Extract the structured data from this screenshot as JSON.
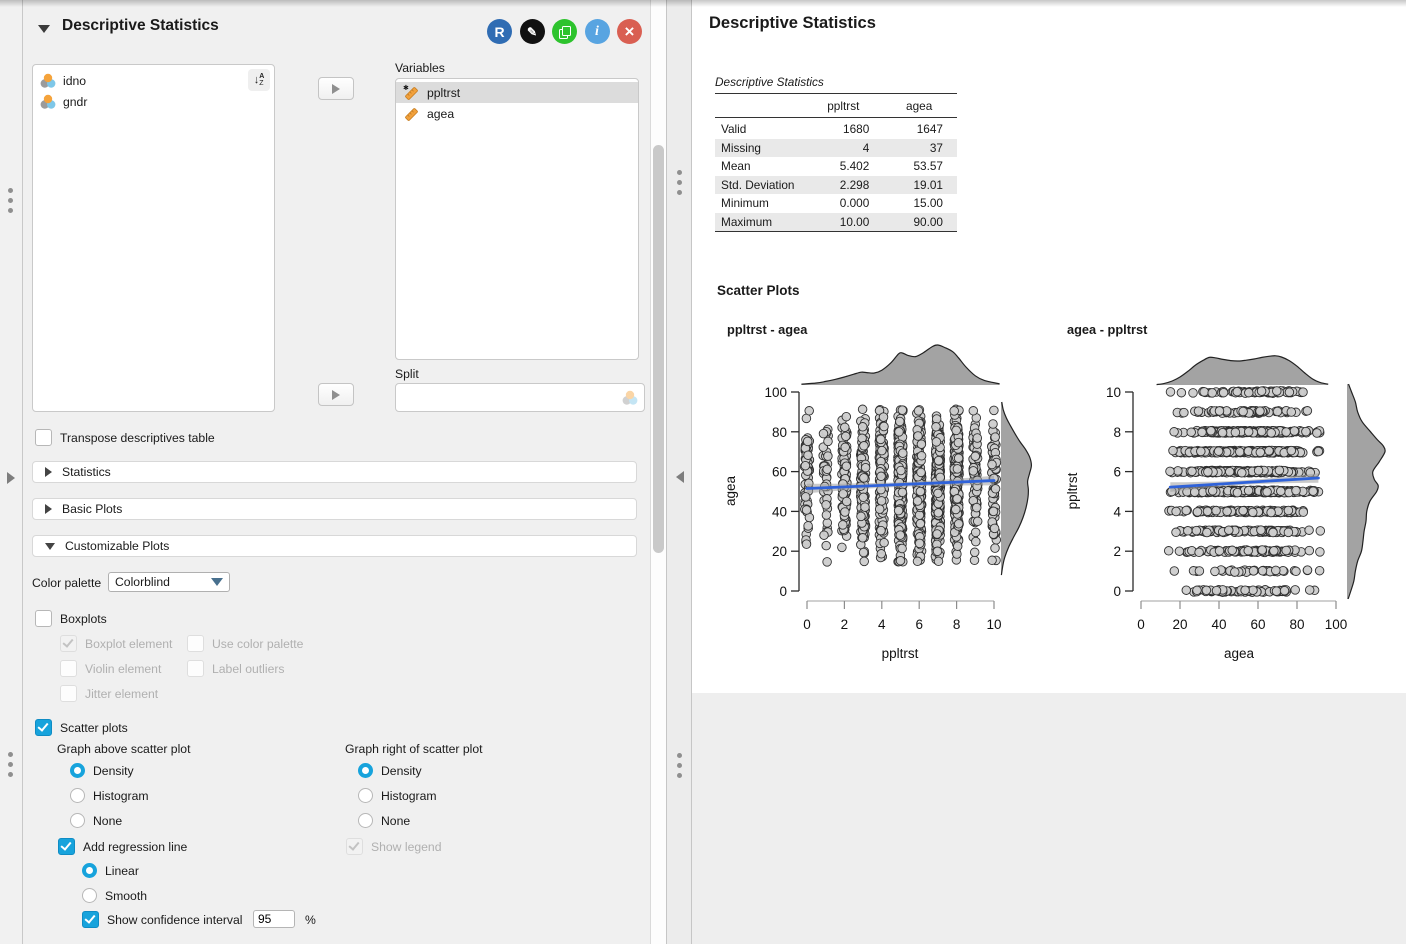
{
  "panel": {
    "title": "Descriptive Statistics",
    "header_icons": {
      "r_syntax": {
        "glyph": "R",
        "color": "#2f6cb3"
      },
      "edit": {
        "glyph": "✎",
        "color": "#111111"
      },
      "duplicate": {
        "color": "#2dc32d"
      },
      "info": {
        "glyph": "i",
        "color": "#58a4e1"
      },
      "close": {
        "glyph": "×",
        "color": "#d95f52"
      }
    },
    "sort_icon": {
      "arrow": "↓",
      "top": "A",
      "bottom": "Z"
    },
    "available_list": {
      "items": [
        {
          "label": "idno",
          "type": "nominal"
        },
        {
          "label": "gndr",
          "type": "nominal"
        }
      ]
    },
    "variables_list": {
      "label": "Variables",
      "items": [
        {
          "label": "ppltrst",
          "type": "scale",
          "selected": true,
          "flagged": true
        },
        {
          "label": "agea",
          "type": "scale",
          "selected": false,
          "flagged": false
        }
      ]
    },
    "split": {
      "label": "Split",
      "value": ""
    },
    "transpose": {
      "label": "Transpose descriptives table",
      "checked": false
    },
    "sections": [
      {
        "label": "Statistics",
        "expanded": false
      },
      {
        "label": "Basic Plots",
        "expanded": false
      },
      {
        "label": "Customizable Plots",
        "expanded": true
      }
    ],
    "color_palette": {
      "label": "Color palette",
      "value": "Colorblind"
    },
    "boxplots": {
      "label": "Boxplots",
      "checked": false,
      "boxplot_element": {
        "label": "Boxplot element",
        "checked": true
      },
      "use_color_palette": {
        "label": "Use color palette",
        "checked": false
      },
      "violin_element": {
        "label": "Violin element",
        "checked": false
      },
      "label_outliers": {
        "label": "Label outliers",
        "checked": false
      },
      "jitter_element": {
        "label": "Jitter element",
        "checked": false
      }
    },
    "scatter": {
      "label": "Scatter plots",
      "checked": true,
      "above_label": "Graph above scatter plot",
      "right_label": "Graph right of scatter plot",
      "above_options": [
        "Density",
        "Histogram",
        "None"
      ],
      "above_selected": "Density",
      "right_options": [
        "Density",
        "Histogram",
        "None"
      ],
      "right_selected": "Density",
      "regression": {
        "label": "Add regression line",
        "checked": true,
        "options": [
          "Linear",
          "Smooth"
        ],
        "selected": "Linear"
      },
      "ci": {
        "label": "Show confidence interval",
        "checked": true,
        "value": "95",
        "suffix": "%"
      },
      "legend": {
        "label": "Show legend",
        "checked": true,
        "disabled": true
      }
    }
  },
  "results": {
    "title": "Descriptive Statistics",
    "table": {
      "caption": "Descriptive Statistics",
      "columns": [
        "",
        "ppltrst",
        "agea"
      ],
      "rows": [
        [
          "Valid",
          "1680",
          "1647"
        ],
        [
          "Missing",
          "4",
          "37"
        ],
        [
          "Mean",
          "5.402",
          "53.57"
        ],
        [
          "Std. Deviation",
          "2.298",
          "19.01"
        ],
        [
          "Minimum",
          "0.000",
          "15.00"
        ],
        [
          "Maximum",
          "10.00",
          "90.00"
        ]
      ]
    },
    "scatter_section_title": "Scatter Plots"
  },
  "chart_data": [
    {
      "type": "scatter",
      "title": "ppltrst - agea",
      "xlabel": "ppltrst",
      "ylabel": "agea",
      "xlim": [
        0,
        10
      ],
      "ylim": [
        0,
        100
      ],
      "xticks": [
        0,
        2,
        4,
        6,
        8,
        10
      ],
      "yticks": [
        0,
        20,
        40,
        60,
        80,
        100
      ],
      "orientation": "columns",
      "discrete_levels": [
        0,
        1,
        2,
        3,
        4,
        5,
        6,
        7,
        8,
        9,
        10
      ],
      "counts_per_level": [
        62,
        40,
        96,
        118,
        141,
        305,
        215,
        294,
        254,
        73,
        68
      ],
      "continuous_dist": {
        "mix": [
          {
            "w": 0.48,
            "mean": 43,
            "sd": 12
          },
          {
            "w": 0.52,
            "mean": 66,
            "sd": 11
          }
        ],
        "min": 15,
        "max": 91
      },
      "n_points": 1666,
      "marginal_top": "density",
      "marginal_right": "density",
      "regression": {
        "type": "linear",
        "from": [
          0,
          51.5
        ],
        "to": [
          10,
          55.5
        ],
        "ci": 95,
        "color": "#2f62d9"
      },
      "point_style": {
        "fill": "#cdcdcd",
        "stroke": "#2f2f2f",
        "r": 4.3
      },
      "density_fill": "#9b9b9b",
      "top_profile": [
        [
          -0.3,
          0.02
        ],
        [
          0.5,
          0.05
        ],
        [
          1,
          0.09
        ],
        [
          1.5,
          0.14
        ],
        [
          2,
          0.2
        ],
        [
          2.5,
          0.27
        ],
        [
          2.9,
          0.32
        ],
        [
          3.2,
          0.31
        ],
        [
          3.6,
          0.3
        ],
        [
          4,
          0.37
        ],
        [
          4.5,
          0.56
        ],
        [
          4.9,
          0.78
        ],
        [
          5.1,
          0.8
        ],
        [
          5.4,
          0.74
        ],
        [
          5.8,
          0.71
        ],
        [
          6.2,
          0.8
        ],
        [
          6.7,
          0.96
        ],
        [
          7,
          1.0
        ],
        [
          7.4,
          0.93
        ],
        [
          7.8,
          0.83
        ],
        [
          8.1,
          0.68
        ],
        [
          8.5,
          0.45
        ],
        [
          9,
          0.23
        ],
        [
          9.5,
          0.11
        ],
        [
          10.3,
          0.03
        ]
      ],
      "right_profile": [
        [
          8,
          0.01
        ],
        [
          13,
          0.05
        ],
        [
          17,
          0.1
        ],
        [
          22,
          0.2
        ],
        [
          27,
          0.33
        ],
        [
          32,
          0.47
        ],
        [
          37,
          0.58
        ],
        [
          42,
          0.66
        ],
        [
          47,
          0.71
        ],
        [
          51,
          0.72
        ],
        [
          55,
          0.7
        ],
        [
          59,
          0.75
        ],
        [
          63,
          0.8
        ],
        [
          67,
          0.76
        ],
        [
          71,
          0.65
        ],
        [
          75,
          0.5
        ],
        [
          79,
          0.37
        ],
        [
          83,
          0.25
        ],
        [
          87,
          0.14
        ],
        [
          91,
          0.06
        ],
        [
          95,
          0.02
        ]
      ]
    },
    {
      "type": "scatter",
      "title": "agea - ppltrst",
      "xlabel": "agea",
      "ylabel": "ppltrst",
      "xlim": [
        0,
        100
      ],
      "ylim": [
        0,
        10
      ],
      "xticks": [
        0,
        20,
        40,
        60,
        80,
        100
      ],
      "yticks": [
        0,
        2,
        4,
        6,
        8,
        10
      ],
      "orientation": "rows",
      "discrete_levels": [
        0,
        1,
        2,
        3,
        4,
        5,
        6,
        7,
        8,
        9,
        10
      ],
      "counts_per_level": [
        62,
        40,
        96,
        118,
        141,
        305,
        215,
        294,
        254,
        73,
        68
      ],
      "continuous_dist": {
        "mix": [
          {
            "w": 0.48,
            "mean": 43,
            "sd": 12
          },
          {
            "w": 0.52,
            "mean": 66,
            "sd": 11
          }
        ],
        "min": 15,
        "max": 91
      },
      "n_points": 1666,
      "marginal_top": "density",
      "marginal_right": "density",
      "regression": {
        "type": "linear",
        "from": [
          15,
          5.22
        ],
        "to": [
          91,
          5.68
        ],
        "ci": 95,
        "color": "#2f62d9"
      },
      "point_style": {
        "fill": "#cdcdcd",
        "stroke": "#2f2f2f",
        "r": 4.3
      },
      "density_fill": "#9b9b9b",
      "top_profile": [
        [
          8,
          0.01
        ],
        [
          12,
          0.04
        ],
        [
          16,
          0.1
        ],
        [
          20,
          0.2
        ],
        [
          24,
          0.34
        ],
        [
          28,
          0.5
        ],
        [
          32,
          0.62
        ],
        [
          35,
          0.69
        ],
        [
          38,
          0.68
        ],
        [
          42,
          0.64
        ],
        [
          46,
          0.61
        ],
        [
          50,
          0.6
        ],
        [
          54,
          0.62
        ],
        [
          58,
          0.65
        ],
        [
          62,
          0.69
        ],
        [
          66,
          0.72
        ],
        [
          69,
          0.73
        ],
        [
          72,
          0.7
        ],
        [
          76,
          0.61
        ],
        [
          80,
          0.47
        ],
        [
          84,
          0.3
        ],
        [
          88,
          0.15
        ],
        [
          92,
          0.06
        ],
        [
          96,
          0.02
        ]
      ],
      "right_profile": [
        [
          -0.4,
          0.03
        ],
        [
          0,
          0.1
        ],
        [
          0.5,
          0.18
        ],
        [
          1,
          0.22
        ],
        [
          1.5,
          0.28
        ],
        [
          2,
          0.38
        ],
        [
          2.5,
          0.42
        ],
        [
          3,
          0.45
        ],
        [
          3.5,
          0.5
        ],
        [
          4,
          0.52
        ],
        [
          4.5,
          0.6
        ],
        [
          5,
          0.78
        ],
        [
          5.3,
          0.82
        ],
        [
          5.6,
          0.72
        ],
        [
          6,
          0.68
        ],
        [
          6.5,
          0.85
        ],
        [
          7,
          1.0
        ],
        [
          7.3,
          0.95
        ],
        [
          7.6,
          0.8
        ],
        [
          8,
          0.62
        ],
        [
          8.5,
          0.4
        ],
        [
          9,
          0.28
        ],
        [
          9.5,
          0.22
        ],
        [
          10,
          0.12
        ],
        [
          10.4,
          0.04
        ]
      ]
    }
  ]
}
